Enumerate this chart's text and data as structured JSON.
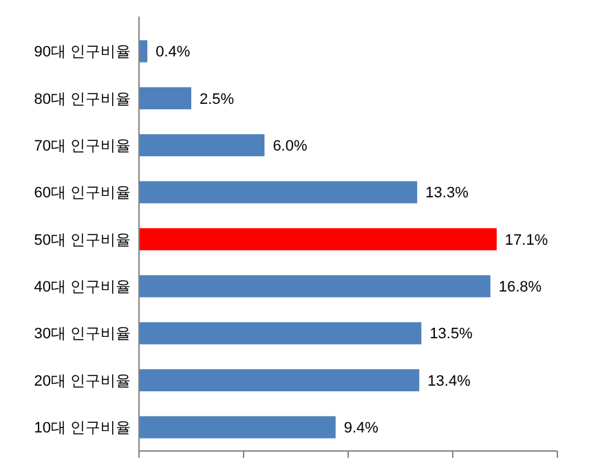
{
  "chart_data": {
    "type": "bar",
    "orientation": "horizontal",
    "categories": [
      "90대 인구비율",
      "80대 인구비율",
      "70대 인구비율",
      "60대 인구비율",
      "50대 인구비율",
      "40대 인구비율",
      "30대 인구비율",
      "20대 인구비율",
      "10대 인구비율"
    ],
    "values": [
      0.4,
      2.5,
      6.0,
      13.3,
      17.1,
      16.8,
      13.5,
      13.4,
      9.4
    ],
    "value_labels": [
      "0.4%",
      "2.5%",
      "6.0%",
      "13.3%",
      "17.1%",
      "16.8%",
      "13.5%",
      "13.4%",
      "9.4%"
    ],
    "colors": [
      "#4f81bd",
      "#4f81bd",
      "#4f81bd",
      "#4f81bd",
      "#ff0000",
      "#4f81bd",
      "#4f81bd",
      "#4f81bd",
      "#4f81bd"
    ],
    "xlim": [
      0,
      20
    ],
    "xticks": [
      {
        "value": 0,
        "label": null
      },
      {
        "value": 5,
        "label": null
      },
      {
        "value": 10,
        "label": null
      },
      {
        "value": 15,
        "label": null
      },
      {
        "value": 20,
        "label": null
      }
    ],
    "tick_labels": "y"
  }
}
